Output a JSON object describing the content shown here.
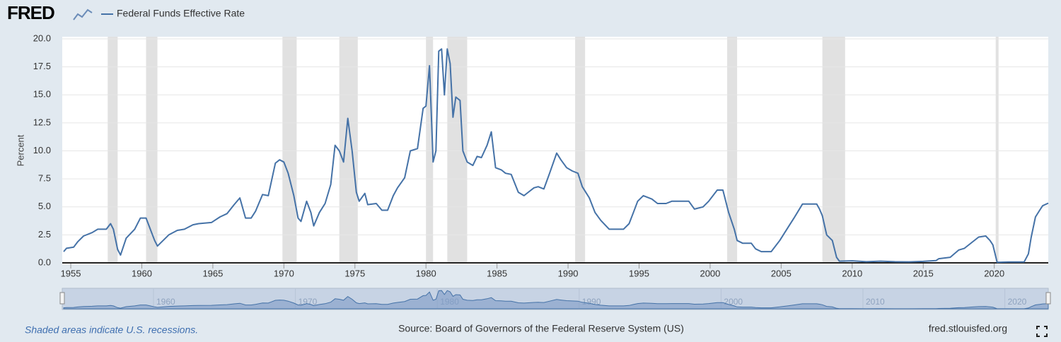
{
  "chart_data": {
    "type": "line",
    "brand": "FRED",
    "ylabel": "Percent",
    "recession_note": "Shaded areas indicate U.S. recessions.",
    "source": "Source: Board of Governors of the Federal Reserve System (US)",
    "site": "fred.stlouisfed.org",
    "xlim": [
      1954.4,
      2023.8
    ],
    "ylim": [
      0,
      20
    ],
    "xticks": [
      1955,
      1960,
      1965,
      1970,
      1975,
      1980,
      1985,
      1990,
      1995,
      2000,
      2005,
      2010,
      2015,
      2020
    ],
    "yticks": [
      {
        "value": 0,
        "label": "0.0"
      },
      2.5,
      {
        "value": 5,
        "label": "5.0"
      },
      7.5,
      {
        "value": 10,
        "label": "10.0"
      },
      12.5,
      {
        "value": 15,
        "label": "15.0"
      },
      17.5,
      {
        "value": 20,
        "label": "20.0"
      }
    ],
    "grid": true,
    "navigator_ticks": [
      1960,
      1970,
      1980,
      1990,
      2000,
      2010,
      2020
    ],
    "recessions": [
      [
        1957.6,
        1958.3
      ],
      [
        1960.3,
        1961.1
      ],
      [
        1969.9,
        1970.9
      ],
      [
        1973.9,
        1975.2
      ],
      [
        1980.0,
        1980.5
      ],
      [
        1981.5,
        1982.9
      ],
      [
        1990.5,
        1991.2
      ],
      [
        2001.2,
        2001.9
      ],
      [
        2007.9,
        2009.5
      ],
      [
        2020.1,
        2020.3
      ]
    ],
    "x": [
      1954.5,
      1954.7,
      1955.2,
      1955.5,
      1955.9,
      1956.5,
      1956.9,
      1957.5,
      1957.8,
      1958.0,
      1958.3,
      1958.5,
      1958.9,
      1959.5,
      1959.9,
      1960.3,
      1960.6,
      1960.9,
      1961.1,
      1961.5,
      1961.9,
      1962.5,
      1963.0,
      1963.6,
      1964.0,
      1964.9,
      1965.5,
      1966.0,
      1966.5,
      1966.9,
      1967.3,
      1967.7,
      1968.0,
      1968.5,
      1968.9,
      1969.4,
      1969.7,
      1970.0,
      1970.3,
      1970.7,
      1971.0,
      1971.2,
      1971.6,
      1971.9,
      1972.1,
      1972.5,
      1972.9,
      1973.3,
      1973.6,
      1973.9,
      1974.2,
      1974.5,
      1974.8,
      1975.1,
      1975.3,
      1975.7,
      1975.9,
      1976.5,
      1976.9,
      1977.3,
      1977.7,
      1978.0,
      1978.5,
      1978.9,
      1979.4,
      1979.8,
      1980.0,
      1980.25,
      1980.5,
      1980.7,
      1980.9,
      1981.1,
      1981.3,
      1981.5,
      1981.7,
      1981.9,
      1982.1,
      1982.4,
      1982.6,
      1982.9,
      1983.3,
      1983.6,
      1983.9,
      1984.3,
      1984.6,
      1984.9,
      1985.3,
      1985.6,
      1986.0,
      1986.5,
      1986.9,
      1987.2,
      1987.6,
      1987.9,
      1988.3,
      1988.7,
      1989.2,
      1989.5,
      1989.9,
      1990.3,
      1990.7,
      1991.0,
      1991.5,
      1991.9,
      1992.3,
      1992.9,
      1993.5,
      1993.9,
      1994.3,
      1994.6,
      1994.9,
      1995.3,
      1995.9,
      1996.3,
      1996.9,
      1997.3,
      1998.0,
      1998.5,
      1998.9,
      1999.5,
      1999.9,
      2000.5,
      2000.9,
      2001.3,
      2001.7,
      2001.9,
      2002.3,
      2002.9,
      2003.2,
      2003.6,
      2004.3,
      2004.9,
      2005.5,
      2005.9,
      2006.5,
      2007.5,
      2007.7,
      2007.9,
      2008.2,
      2008.6,
      2008.9,
      2009.1,
      2010.0,
      2011.0,
      2012.0,
      2013.0,
      2014.0,
      2015.0,
      2015.9,
      2016.1,
      2016.9,
      2017.5,
      2017.9,
      2018.5,
      2018.9,
      2019.4,
      2019.7,
      2019.9,
      2020.2,
      2021.0,
      2022.1,
      2022.4,
      2022.6,
      2022.9,
      2023.2,
      2023.4,
      2023.8
    ],
    "series": [
      {
        "name": "Federal Funds Effective Rate",
        "color": "#4572a7",
        "values": [
          1.0,
          1.3,
          1.4,
          1.9,
          2.4,
          2.7,
          3.0,
          3.0,
          3.5,
          3.0,
          1.2,
          0.7,
          2.2,
          3.0,
          4.0,
          4.0,
          3.0,
          2.0,
          1.5,
          2.0,
          2.5,
          2.9,
          3.0,
          3.4,
          3.5,
          3.6,
          4.1,
          4.4,
          5.2,
          5.8,
          4.0,
          4.0,
          4.6,
          6.1,
          6.0,
          8.9,
          9.2,
          9.0,
          8.0,
          6.0,
          4.0,
          3.7,
          5.5,
          4.5,
          3.3,
          4.5,
          5.3,
          7.0,
          10.5,
          10.0,
          9.0,
          12.9,
          10.0,
          6.3,
          5.5,
          6.2,
          5.2,
          5.3,
          4.7,
          4.7,
          6.0,
          6.7,
          7.6,
          10.0,
          10.2,
          13.8,
          14.0,
          17.6,
          9.0,
          10.0,
          18.9,
          19.1,
          15.0,
          19.1,
          17.8,
          13.0,
          14.8,
          14.5,
          10.0,
          9.0,
          8.7,
          9.5,
          9.4,
          10.5,
          11.7,
          8.5,
          8.3,
          8.0,
          7.9,
          6.3,
          6.0,
          6.3,
          6.7,
          6.8,
          6.6,
          8.0,
          9.8,
          9.2,
          8.5,
          8.2,
          8.0,
          6.8,
          5.8,
          4.5,
          3.8,
          3.0,
          3.0,
          3.0,
          3.5,
          4.5,
          5.5,
          6.0,
          5.7,
          5.3,
          5.3,
          5.5,
          5.5,
          5.5,
          4.8,
          5.0,
          5.5,
          6.5,
          6.5,
          4.5,
          3.0,
          2.0,
          1.75,
          1.75,
          1.25,
          1.0,
          1.0,
          2.0,
          3.2,
          4.0,
          5.25,
          5.25,
          4.8,
          4.2,
          2.5,
          2.0,
          0.5,
          0.15,
          0.18,
          0.1,
          0.15,
          0.1,
          0.09,
          0.13,
          0.2,
          0.37,
          0.5,
          1.15,
          1.3,
          1.9,
          2.3,
          2.4,
          2.0,
          1.6,
          0.05,
          0.08,
          0.08,
          0.8,
          2.3,
          4.1,
          4.7,
          5.1,
          5.33
        ]
      }
    ]
  }
}
